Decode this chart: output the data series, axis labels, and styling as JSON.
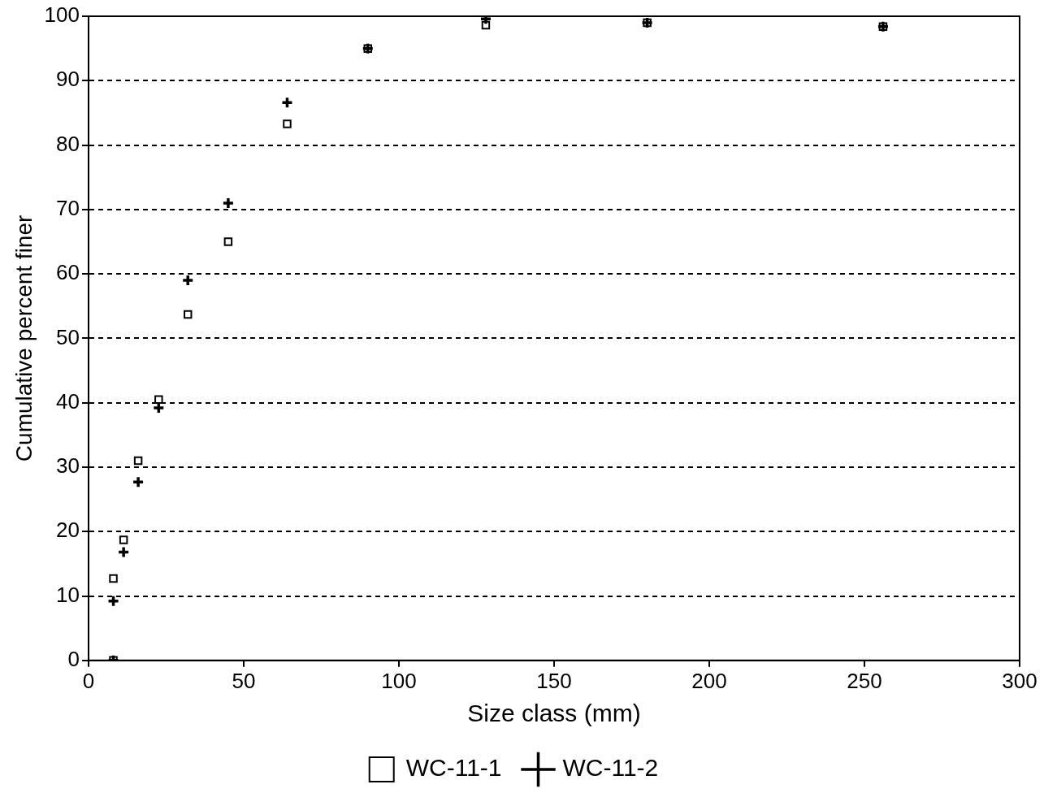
{
  "chart_data": {
    "type": "scatter",
    "xlabel": "Size class (mm)",
    "ylabel": "Cumulative percent finer",
    "xlim": [
      0,
      300
    ],
    "xticks": [
      0,
      50,
      100,
      150,
      200,
      250,
      300
    ],
    "ylim": [
      0,
      100
    ],
    "yticks": [
      0,
      10,
      20,
      30,
      40,
      50,
      60,
      70,
      80,
      90,
      100
    ],
    "grid": "y",
    "legend": "bottom",
    "series": [
      {
        "name": "WC-11-1",
        "color": "#000000",
        "marker": "square",
        "x": [
          8,
          8,
          11.3,
          16,
          22.6,
          32,
          45,
          64,
          90,
          128,
          180,
          256
        ],
        "values": [
          0,
          12.7,
          18.7,
          31,
          40.5,
          53.7,
          65,
          83.3,
          95,
          98.6,
          99,
          98.4
        ]
      },
      {
        "name": "WC-11-2",
        "color": "#000000",
        "marker": "cross",
        "x": [
          8,
          8,
          11.3,
          16,
          22.6,
          32,
          45,
          64,
          90,
          128,
          180,
          256
        ],
        "values": [
          0,
          9.2,
          16.8,
          27.7,
          39.2,
          59,
          71,
          86.6,
          95,
          99.6,
          99,
          98.4
        ]
      }
    ]
  }
}
